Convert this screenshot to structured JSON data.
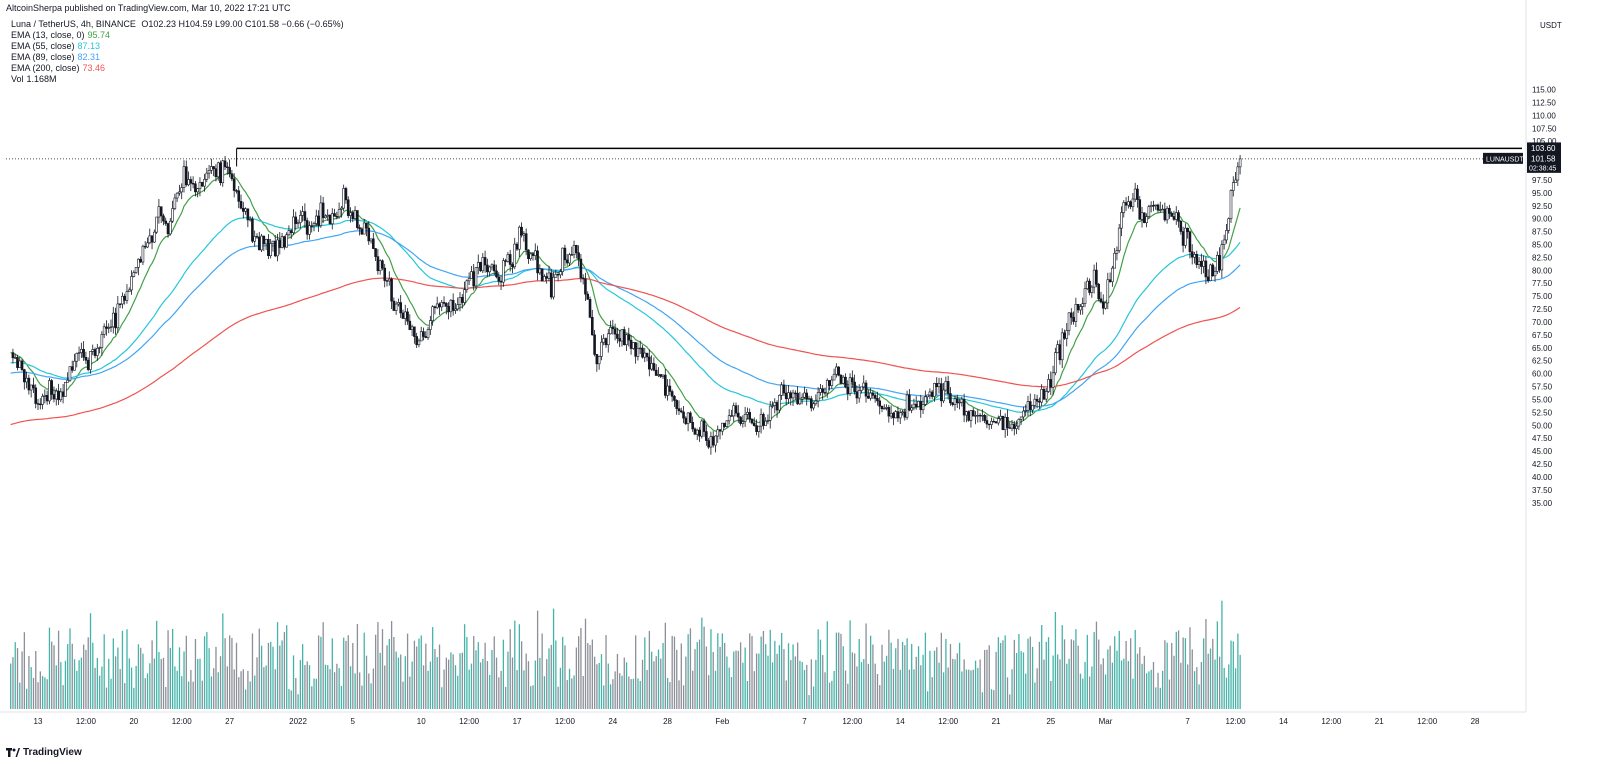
{
  "header": {
    "published": "AltcoinSherpa published on TradingView.com, Mar 10, 2022 17:21 UTC",
    "symbol": "Luna / TetherUS, 4h, BINANCE",
    "ohlc": "O102.23 H104.59 L99.00 C101.58 −0.66 (−0.65%)"
  },
  "indicators": [
    {
      "label": "EMA (13, close, 0)",
      "value": "95.74",
      "color": "#43a047"
    },
    {
      "label": "EMA (55, close)",
      "value": "87.13",
      "color": "#26c6da"
    },
    {
      "label": "EMA (89, close)",
      "value": "82.31",
      "color": "#42a5f5"
    },
    {
      "label": "EMA (200, close)",
      "value": "73.46",
      "color": "#ef5350"
    },
    {
      "label": "Vol",
      "value": "1.168M",
      "color": "#131722"
    }
  ],
  "footer": {
    "brand": "TradingView"
  },
  "colors": {
    "candle": "#131722",
    "vol_up": "#26a69a",
    "vol_down": "#787b86",
    "hline": "#000000",
    "background": "#ffffff"
  },
  "chart_data": {
    "type": "candlestick",
    "symbol_tag": "LUNAUSDT",
    "ylim": [
      32.5,
      117.5
    ],
    "price_ticks": [
      "35.00",
      "37.50",
      "40.00",
      "42.50",
      "45.00",
      "47.50",
      "50.00",
      "52.50",
      "55.00",
      "57.50",
      "60.00",
      "62.50",
      "65.00",
      "67.50",
      "70.00",
      "72.50",
      "75.00",
      "77.50",
      "80.00",
      "82.50",
      "85.00",
      "87.50",
      "90.00",
      "92.50",
      "95.00",
      "97.50",
      "100.00",
      "102.50",
      "105.00",
      "107.50",
      "110.00",
      "112.50",
      "115.00"
    ],
    "ylabel": "USDT",
    "x_ticks": [
      {
        "label": "13",
        "date": "2021-12-13"
      },
      {
        "label": "12:00",
        "date": "2021-12-16T12:00"
      },
      {
        "label": "20",
        "date": "2021-12-20"
      },
      {
        "label": "12:00",
        "date": "2021-12-23T12:00"
      },
      {
        "label": "27",
        "date": "2021-12-27"
      },
      {
        "label": "2022",
        "date": "2022-01-01"
      },
      {
        "label": "5",
        "date": "2022-01-05"
      },
      {
        "label": "10",
        "date": "2022-01-10"
      },
      {
        "label": "12:00",
        "date": "2022-01-13T12:00"
      },
      {
        "label": "17",
        "date": "2022-01-17"
      },
      {
        "label": "12:00",
        "date": "2022-01-20T12:00"
      },
      {
        "label": "24",
        "date": "2022-01-24"
      },
      {
        "label": "28",
        "date": "2022-01-28"
      },
      {
        "label": "Feb",
        "date": "2022-02-01"
      },
      {
        "label": "7",
        "date": "2022-02-07"
      },
      {
        "label": "12:00",
        "date": "2022-02-10T12:00"
      },
      {
        "label": "14",
        "date": "2022-02-14"
      },
      {
        "label": "12:00",
        "date": "2022-02-17T12:00"
      },
      {
        "label": "21",
        "date": "2022-02-21"
      },
      {
        "label": "25",
        "date": "2022-02-25"
      },
      {
        "label": "Mar",
        "date": "2022-03-01"
      },
      {
        "label": "7",
        "date": "2022-03-07"
      },
      {
        "label": "12:00",
        "date": "2022-03-10T12:00"
      },
      {
        "label": "14",
        "date": "2022-03-14"
      },
      {
        "label": "12:00",
        "date": "2022-03-17T12:00"
      },
      {
        "label": "21",
        "date": "2022-03-21"
      },
      {
        "label": "12:00",
        "date": "2022-03-24T12:00"
      },
      {
        "label": "28",
        "date": "2022-03-28"
      }
    ],
    "horizontal_line": {
      "price": 103.6,
      "label": "103.60",
      "start_date": "2021-12-27"
    },
    "last_price": {
      "price": 101.58,
      "label": "101.58",
      "countdown": "02:38:45"
    },
    "price_path": [
      [
        "2021-12-11T00:00",
        66
      ],
      [
        "2021-12-11T20:00",
        60
      ],
      [
        "2021-12-12T12:00",
        57
      ],
      [
        "2021-12-13T04:00",
        54
      ],
      [
        "2021-12-13T20:00",
        58
      ],
      [
        "2021-12-14T12:00",
        55
      ],
      [
        "2021-12-15T08:00",
        60
      ],
      [
        "2021-12-16T00:00",
        64
      ],
      [
        "2021-12-16T16:00",
        62
      ],
      [
        "2021-12-17T12:00",
        66
      ],
      [
        "2021-12-18T12:00",
        70
      ],
      [
        "2021-12-19T08:00",
        75
      ],
      [
        "2021-12-20T04:00",
        80
      ],
      [
        "2021-12-21T00:00",
        85
      ],
      [
        "2021-12-21T20:00",
        90
      ],
      [
        "2021-12-22T12:00",
        88
      ],
      [
        "2021-12-23T04:00",
        95
      ],
      [
        "2021-12-23T20:00",
        98
      ],
      [
        "2021-12-24T12:00",
        96
      ],
      [
        "2021-12-25T08:00",
        99
      ],
      [
        "2021-12-26T00:00",
        97
      ],
      [
        "2021-12-26T16:00",
        101
      ],
      [
        "2021-12-27T08:00",
        98
      ],
      [
        "2021-12-28T00:00",
        92
      ],
      [
        "2021-12-28T16:00",
        88
      ],
      [
        "2021-12-29T12:00",
        85
      ],
      [
        "2021-12-30T08:00",
        84
      ],
      [
        "2021-12-31T04:00",
        87
      ],
      [
        "2022-01-01T00:00",
        90
      ],
      [
        "2022-01-01T20:00",
        89
      ],
      [
        "2022-01-02T16:00",
        91
      ],
      [
        "2022-01-03T12:00",
        90
      ],
      [
        "2022-01-04T08:00",
        93
      ],
      [
        "2022-01-05T00:00",
        91
      ],
      [
        "2022-01-05T16:00",
        88
      ],
      [
        "2022-01-06T08:00",
        85
      ],
      [
        "2022-01-07T00:00",
        81
      ],
      [
        "2022-01-07T16:00",
        76
      ],
      [
        "2022-01-08T12:00",
        72
      ],
      [
        "2022-01-09T04:00",
        70
      ],
      [
        "2022-01-09T20:00",
        66
      ],
      [
        "2022-01-10T16:00",
        71
      ],
      [
        "2022-01-11T12:00",
        74
      ],
      [
        "2022-01-12T08:00",
        72
      ],
      [
        "2022-01-13T04:00",
        76
      ],
      [
        "2022-01-14T00:00",
        80
      ],
      [
        "2022-01-14T20:00",
        82
      ],
      [
        "2022-01-15T16:00",
        78
      ],
      [
        "2022-01-16T12:00",
        82
      ],
      [
        "2022-01-17T04:00",
        86
      ],
      [
        "2022-01-17T20:00",
        84
      ],
      [
        "2022-01-18T16:00",
        80
      ],
      [
        "2022-01-19T12:00",
        78
      ],
      [
        "2022-01-20T08:00",
        81
      ],
      [
        "2022-01-21T04:00",
        84
      ],
      [
        "2022-01-21T20:00",
        80
      ],
      [
        "2022-01-22T08:00",
        70
      ],
      [
        "2022-01-22T20:00",
        62
      ],
      [
        "2022-01-23T12:00",
        66
      ],
      [
        "2022-01-24T04:00",
        68
      ],
      [
        "2022-01-24T20:00",
        66
      ],
      [
        "2022-01-25T16:00",
        65
      ],
      [
        "2022-01-26T12:00",
        62
      ],
      [
        "2022-01-27T08:00",
        60
      ],
      [
        "2022-01-28T04:00",
        56
      ],
      [
        "2022-01-29T00:00",
        52
      ],
      [
        "2022-01-29T20:00",
        50
      ],
      [
        "2022-01-30T16:00",
        48
      ],
      [
        "2022-01-31T08:00",
        46
      ],
      [
        "2022-02-01T00:00",
        50
      ],
      [
        "2022-02-01T20:00",
        53
      ],
      [
        "2022-02-02T16:00",
        52
      ],
      [
        "2022-02-03T12:00",
        49
      ],
      [
        "2022-02-04T08:00",
        51
      ],
      [
        "2022-02-05T04:00",
        56
      ],
      [
        "2022-02-06T00:00",
        57
      ],
      [
        "2022-02-06T20:00",
        56
      ],
      [
        "2022-02-07T16:00",
        55
      ],
      [
        "2022-02-08T12:00",
        58
      ],
      [
        "2022-02-09T08:00",
        60
      ],
      [
        "2022-02-10T04:00",
        57
      ],
      [
        "2022-02-11T00:00",
        57
      ],
      [
        "2022-02-11T20:00",
        56
      ],
      [
        "2022-02-12T16:00",
        53
      ],
      [
        "2022-02-13T12:00",
        52
      ],
      [
        "2022-02-14T08:00",
        53
      ],
      [
        "2022-02-15T04:00",
        54
      ],
      [
        "2022-02-16T00:00",
        56
      ],
      [
        "2022-02-16T20:00",
        57
      ],
      [
        "2022-02-17T16:00",
        56
      ],
      [
        "2022-02-18T12:00",
        53
      ],
      [
        "2022-02-19T08:00",
        52
      ],
      [
        "2022-02-20T04:00",
        51
      ],
      [
        "2022-02-21T00:00",
        50
      ],
      [
        "2022-02-21T20:00",
        49
      ],
      [
        "2022-02-22T16:00",
        52
      ],
      [
        "2022-02-23T12:00",
        54
      ],
      [
        "2022-02-24T04:00",
        56
      ],
      [
        "2022-02-24T20:00",
        58
      ],
      [
        "2022-02-25T16:00",
        65
      ],
      [
        "2022-02-26T12:00",
        70
      ],
      [
        "2022-02-27T08:00",
        75
      ],
      [
        "2022-02-28T04:00",
        78
      ],
      [
        "2022-02-28T20:00",
        73
      ],
      [
        "2022-03-01T16:00",
        82
      ],
      [
        "2022-03-02T08:00",
        92
      ],
      [
        "2022-03-03T04:00",
        94
      ],
      [
        "2022-03-03T20:00",
        91
      ],
      [
        "2022-03-04T16:00",
        93
      ],
      [
        "2022-03-05T12:00",
        91
      ],
      [
        "2022-03-06T08:00",
        88
      ],
      [
        "2022-03-07T04:00",
        84
      ],
      [
        "2022-03-07T20:00",
        81
      ],
      [
        "2022-03-08T16:00",
        79
      ],
      [
        "2022-03-09T08:00",
        82
      ],
      [
        "2022-03-09T20:00",
        88
      ],
      [
        "2022-03-10T04:00",
        95
      ],
      [
        "2022-03-10T12:00",
        99
      ],
      [
        "2022-03-10T20:00",
        101.58
      ]
    ]
  }
}
